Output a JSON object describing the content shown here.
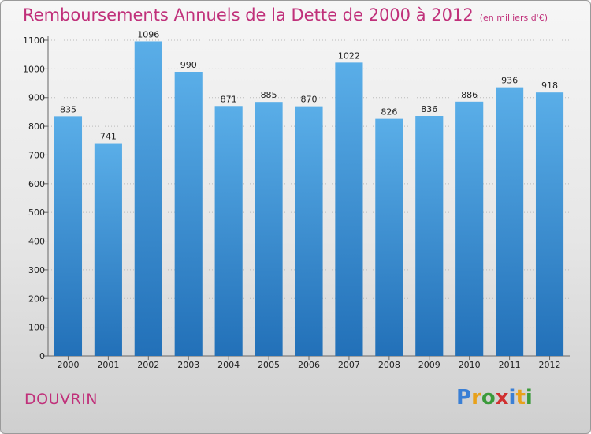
{
  "header": {
    "title": "Remboursements Annuels de la Dette de 2000 à 2012",
    "unit": "(en milliers d'€)"
  },
  "footer": {
    "commune": "DOUVRIN",
    "brand": "Proxiti",
    "brand_colors": [
      "#3a7fd5",
      "#e8a11a",
      "#3a9a3a",
      "#d03030",
      "#3a7fd5",
      "#e8a11a",
      "#3a9a3a"
    ]
  },
  "colors": {
    "title": "#c0307a",
    "bar_top": "#5aaee8",
    "bar_bottom": "#2270b8",
    "grid": "#bbbbbb"
  },
  "chart_data": {
    "type": "bar",
    "title": "Remboursements Annuels de la Dette de 2000 à 2012",
    "subtitle": "(en milliers d'€)",
    "xlabel": "",
    "ylabel": "",
    "categories": [
      "2000",
      "2001",
      "2002",
      "2003",
      "2004",
      "2005",
      "2006",
      "2007",
      "2008",
      "2009",
      "2010",
      "2011",
      "2012"
    ],
    "values": [
      835,
      741,
      1096,
      990,
      871,
      885,
      870,
      1022,
      826,
      836,
      886,
      936,
      918
    ],
    "ylim": [
      0,
      1100
    ],
    "yticks": [
      0,
      100,
      200,
      300,
      400,
      500,
      600,
      700,
      800,
      900,
      1000,
      1100
    ],
    "grid": true,
    "legend": "none"
  }
}
